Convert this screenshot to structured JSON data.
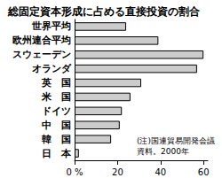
{
  "chart_data": {
    "type": "bar",
    "title": "総固定資本形成に占める直接投資の割合",
    "orientation": "horizontal",
    "categories": [
      "世界平均",
      "欧州連合平均",
      "スウェーデン",
      "オランダ",
      "英　国",
      "米　国",
      "ドイツ",
      "中　国",
      "韓　国",
      "日　本"
    ],
    "values": [
      24,
      39,
      60,
      57,
      31,
      26,
      22,
      21,
      17,
      2
    ],
    "color": "#cccccc",
    "xlim": [
      0,
      62
    ],
    "xticks": [
      {
        "value": 0,
        "label": "0 %"
      },
      20,
      40,
      60
    ],
    "grid": false,
    "annotations": [
      "(注)国連貿易開発会議",
      "資料。2000年"
    ]
  }
}
